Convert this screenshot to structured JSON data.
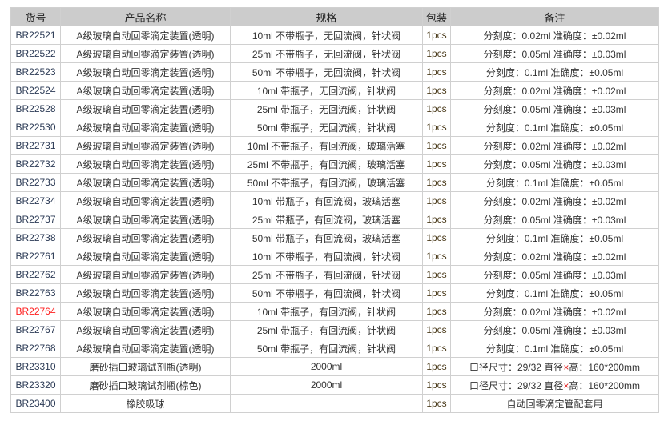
{
  "headers": [
    "货号",
    "产品名称",
    "规格",
    "包装",
    "备注"
  ],
  "rows": [
    {
      "code": "BR22521",
      "name": "A级玻璃自动回零滴定装置(透明)",
      "spec": "10ml 不带瓶子，无回流阀，针状阀",
      "pack": "1pcs",
      "note": "分刻度：0.02ml 准确度：±0.02ml"
    },
    {
      "code": "BR22522",
      "name": "A级玻璃自动回零滴定装置(透明)",
      "spec": "25ml 不带瓶子，无回流阀，针状阀",
      "pack": "1pcs",
      "note": "分刻度：0.05ml 准确度：±0.03ml"
    },
    {
      "code": "BR22523",
      "name": "A级玻璃自动回零滴定装置(透明)",
      "spec": "50ml 不带瓶子，无回流阀，针状阀",
      "pack": "1pcs",
      "note": "分刻度：0.1ml 准确度：±0.05ml"
    },
    {
      "code": "BR22524",
      "name": "A级玻璃自动回零滴定装置(透明)",
      "spec": "10ml 带瓶子，无回流阀，针状阀",
      "pack": "1pcs",
      "note": "分刻度：0.02ml 准确度：±0.02ml"
    },
    {
      "code": "BR22528",
      "name": "A级玻璃自动回零滴定装置(透明)",
      "spec": "25ml 带瓶子，无回流阀，针状阀",
      "pack": "1pcs",
      "note": "分刻度：0.05ml 准确度：±0.03ml"
    },
    {
      "code": "BR22530",
      "name": "A级玻璃自动回零滴定装置(透明)",
      "spec": "50ml 带瓶子，无回流阀，针状阀",
      "pack": "1pcs",
      "note": "分刻度：0.1ml 准确度：±0.05ml"
    },
    {
      "code": "BR22731",
      "name": "A级玻璃自动回零滴定装置(透明)",
      "spec": "10ml 不带瓶子，有回流阀，玻璃活塞",
      "pack": "1pcs",
      "note": "分刻度：0.02ml 准确度：±0.02ml"
    },
    {
      "code": "BR22732",
      "name": "A级玻璃自动回零滴定装置(透明)",
      "spec": "25ml 不带瓶子，有回流阀，玻璃活塞",
      "pack": "1pcs",
      "note": "分刻度：0.05ml 准确度：±0.03ml"
    },
    {
      "code": "BR22733",
      "name": "A级玻璃自动回零滴定装置(透明)",
      "spec": "50ml 不带瓶子，有回流阀，玻璃活塞",
      "pack": "1pcs",
      "note": "分刻度：0.1ml 准确度：±0.05ml"
    },
    {
      "code": "BR22734",
      "name": "A级玻璃自动回零滴定装置(透明)",
      "spec": "10ml 带瓶子，有回流阀，玻璃活塞",
      "pack": "1pcs",
      "note": "分刻度：0.02ml 准确度：±0.02ml"
    },
    {
      "code": "BR22737",
      "name": "A级玻璃自动回零滴定装置(透明)",
      "spec": "25ml 带瓶子，有回流阀，玻璃活塞",
      "pack": "1pcs",
      "note": "分刻度：0.05ml 准确度：±0.03ml"
    },
    {
      "code": "BR22738",
      "name": "A级玻璃自动回零滴定装置(透明)",
      "spec": "50ml 带瓶子，有回流阀，玻璃活塞",
      "pack": "1pcs",
      "note": "分刻度：0.1ml 准确度：±0.05ml"
    },
    {
      "code": "BR22761",
      "name": "A级玻璃自动回零滴定装置(透明)",
      "spec": "10ml 不带瓶子，有回流阀，针状阀",
      "pack": "1pcs",
      "note": "分刻度：0.02ml 准确度：±0.02ml"
    },
    {
      "code": "BR22762",
      "name": "A级玻璃自动回零滴定装置(透明)",
      "spec": "25ml 不带瓶子，有回流阀，针状阀",
      "pack": "1pcs",
      "note": "分刻度：0.05ml 准确度：±0.03ml"
    },
    {
      "code": "BR22763",
      "name": "A级玻璃自动回零滴定装置(透明)",
      "spec": "50ml 不带瓶子，有回流阀，针状阀",
      "pack": "1pcs",
      "note": "分刻度：0.1ml 准确度：±0.05ml"
    },
    {
      "code": "BR22764",
      "name": "A级玻璃自动回零滴定装置(透明)",
      "spec": "10ml 带瓶子，有回流阀，针状阀",
      "pack": "1pcs",
      "note": "分刻度：0.02ml 准确度：±0.02ml",
      "highlight": "#ff2020"
    },
    {
      "code": "BR22767",
      "name": "A级玻璃自动回零滴定装置(透明)",
      "spec": "25ml 带瓶子，有回流阀，针状阀",
      "pack": "1pcs",
      "note": "分刻度：0.05ml 准确度：±0.03ml"
    },
    {
      "code": "BR22768",
      "name": "A级玻璃自动回零滴定装置(透明)",
      "spec": "50ml 带瓶子，有回流阀，针状阀",
      "pack": "1pcs",
      "note": "分刻度：0.1ml 准确度：±0.05ml"
    },
    {
      "code": "BR23310",
      "name": "磨砂插口玻璃试剂瓶(透明)",
      "spec": "2000ml",
      "pack": "1pcs",
      "note_parts": [
        "口径尺寸：29/32 直径",
        "×",
        "高：160*200mm"
      ]
    },
    {
      "code": "BR23320",
      "name": "磨砂插口玻璃试剂瓶(棕色)",
      "spec": "2000ml",
      "pack": "1pcs",
      "note_parts": [
        "口径尺寸：29/32 直径",
        "×",
        "高：160*200mm"
      ]
    },
    {
      "code": "BR23400",
      "name": "橡胶吸球",
      "spec": "",
      "pack": "1pcs",
      "note": "自动回零滴定管配套用"
    }
  ]
}
